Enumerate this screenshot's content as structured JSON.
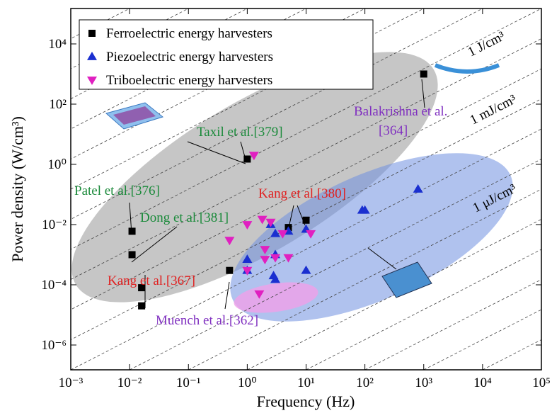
{
  "chart_data": {
    "type": "scatter",
    "x_label": "Frequency (Hz)",
    "y_label": "Power density (W/cm³)",
    "log_x": true,
    "log_y": true,
    "xlim": [
      0.001,
      100000
    ],
    "ylim": [
      1.5e-07,
      150000
    ],
    "xticks": [
      {
        "value": 0.001,
        "label": "10⁻³"
      },
      {
        "value": 0.01,
        "label": "10⁻²"
      },
      {
        "value": 0.1,
        "label": "10⁻¹"
      },
      {
        "value": 1,
        "label": "10⁰"
      },
      {
        "value": 10,
        "label": "10¹"
      },
      {
        "value": 100,
        "label": "10²"
      },
      {
        "value": 1000,
        "label": "10³"
      },
      {
        "value": 10000,
        "label": "10⁴"
      },
      {
        "value": 100000,
        "label": "10⁵"
      }
    ],
    "yticks": [
      {
        "value": 1e-06,
        "label": "10⁻⁶"
      },
      {
        "value": 0.0001,
        "label": "10⁻⁴"
      },
      {
        "value": 0.01,
        "label": "10⁻²"
      },
      {
        "value": 1,
        "label": "10⁰"
      },
      {
        "value": 100,
        "label": "10²"
      },
      {
        "value": 10000,
        "label": "10⁴"
      }
    ],
    "legend_position": "upper left",
    "series": [
      {
        "name": "Ferroelectric energy harvesters",
        "color": "#000000",
        "marker": "square",
        "x": [
          0.011,
          0.011,
          0.016,
          0.016,
          0.5,
          1,
          5,
          10,
          1000
        ],
        "values": [
          0.006,
          0.001,
          8e-05,
          2e-05,
          0.0003,
          1.5,
          0.008,
          0.014,
          1000
        ]
      },
      {
        "name": "Piezoelectric energy harvesters",
        "color": "#1a2fd0",
        "marker": "triangle-up",
        "x": [
          2.5,
          3,
          5,
          10,
          1,
          1,
          3,
          3,
          2.8,
          10,
          90,
          100,
          800
        ],
        "values": [
          0.01,
          0.005,
          0.006,
          0.007,
          0.0007,
          0.0003,
          0.001,
          0.00015,
          0.0002,
          0.0003,
          0.03,
          0.03,
          0.15
        ]
      },
      {
        "name": "Triboelectric energy harvesters",
        "color": "#e020c0",
        "marker": "triangle-down",
        "x": [
          1.3,
          0.5,
          1,
          1.8,
          2,
          2,
          1,
          3,
          5,
          4,
          12,
          1.6,
          2.5
        ],
        "values": [
          2,
          0.003,
          0.01,
          0.015,
          0.0015,
          0.0007,
          0.0003,
          0.0008,
          0.0008,
          0.005,
          0.005,
          5e-05,
          0.012
        ]
      }
    ],
    "annotations": [
      {
        "text": "Taxil et al.[379]",
        "color": "#1a8a3a"
      },
      {
        "text": "Balakrishna et al.",
        "color": "#8030c0"
      },
      {
        "text": "[364]",
        "color": "#8030c0"
      },
      {
        "text": "Patel et al.[376]",
        "color": "#1a8a3a"
      },
      {
        "text": "Dong et al.[381]",
        "color": "#1a8a3a"
      },
      {
        "text": "Kang et al.[380]",
        "color": "#e02020"
      },
      {
        "text": "Kang et al.[367]",
        "color": "#e02020"
      },
      {
        "text": "Muench et al.[362]",
        "color": "#8030c0"
      },
      {
        "text": "1 J/cm³",
        "color": "#000000"
      },
      {
        "text": "1 mJ/cm³",
        "color": "#000000"
      },
      {
        "text": "1 μJ/cm³",
        "color": "#000000"
      }
    ]
  }
}
